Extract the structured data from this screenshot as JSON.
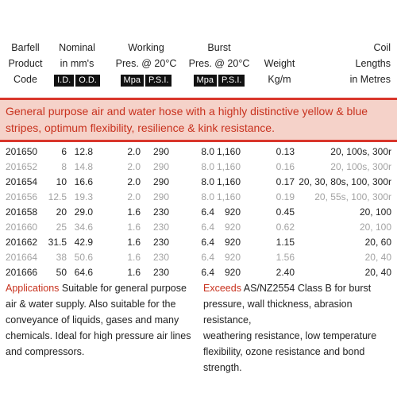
{
  "headers": {
    "code": [
      "Barfell",
      "Product",
      "Code"
    ],
    "nominal": [
      "Nominal",
      "in mm's"
    ],
    "nominal_tags": [
      "I.D.",
      "O.D."
    ],
    "working": [
      "Working",
      "Pres. @ 20°C"
    ],
    "working_tags": [
      "Mpa",
      "P.S.I."
    ],
    "burst": [
      "Burst",
      "Pres. @ 20°C"
    ],
    "burst_tags": [
      "Mpa",
      "P.S.I."
    ],
    "weight": [
      "Weight",
      "Kg/m"
    ],
    "coil": [
      "Coil",
      "Lengths",
      "in Metres"
    ]
  },
  "description": "General purpose air and water hose with a highly distinctive yellow & blue stripes, optimum flexibility, resilience & kink resistance.",
  "rows": [
    {
      "code": "201650",
      "id": "6",
      "od": "12.8",
      "wmpa": "2.0",
      "wpsi": "290",
      "bmpa": "8.0",
      "bpsi": "1,160",
      "kg": "0.13",
      "coil": "20, 100s, 300r"
    },
    {
      "code": "201652",
      "id": "8",
      "od": "14.8",
      "wmpa": "2.0",
      "wpsi": "290",
      "bmpa": "8.0",
      "bpsi": "1,160",
      "kg": "0.16",
      "coil": "20, 100s, 300r"
    },
    {
      "code": "201654",
      "id": "10",
      "od": "16.6",
      "wmpa": "2.0",
      "wpsi": "290",
      "bmpa": "8.0",
      "bpsi": "1,160",
      "kg": "0.17",
      "coil": "20, 30, 80s, 100, 300r"
    },
    {
      "code": "201656",
      "id": "12.5",
      "od": "19.3",
      "wmpa": "2.0",
      "wpsi": "290",
      "bmpa": "8.0",
      "bpsi": "1,160",
      "kg": "0.19",
      "coil": "20, 55s, 100, 300r"
    },
    {
      "code": "201658",
      "id": "20",
      "od": "29.0",
      "wmpa": "1.6",
      "wpsi": "230",
      "bmpa": "6.4",
      "bpsi": "920",
      "kg": "0.45",
      "coil": "20, 100"
    },
    {
      "code": "201660",
      "id": "25",
      "od": "34.6",
      "wmpa": "1.6",
      "wpsi": "230",
      "bmpa": "6.4",
      "bpsi": "920",
      "kg": "0.62",
      "coil": "20, 100"
    },
    {
      "code": "201662",
      "id": "31.5",
      "od": "42.9",
      "wmpa": "1.6",
      "wpsi": "230",
      "bmpa": "6.4",
      "bpsi": "920",
      "kg": "1.15",
      "coil": "20,  60"
    },
    {
      "code": "201664",
      "id": "38",
      "od": "50.6",
      "wmpa": "1.6",
      "wpsi": "230",
      "bmpa": "6.4",
      "bpsi": "920",
      "kg": "1.56",
      "coil": "20,  40"
    },
    {
      "code": "201666",
      "id": "50",
      "od": "64.6",
      "wmpa": "1.6",
      "wpsi": "230",
      "bmpa": "6.4",
      "bpsi": "920",
      "kg": "2.40",
      "coil": "20,  40"
    }
  ],
  "applications": {
    "keyword": "Applications",
    "lines": [
      " Suitable for general purpose",
      "air & water supply. Also suitable for the",
      "conveyance of liquids, gases and many",
      "chemicals. Ideal for high pressure air lines",
      "and compressors."
    ]
  },
  "exceeds": {
    "keyword": "Exceeds",
    "lines": [
      " AS/NZ2554 Class B for burst",
      "pressure, wall thickness, abrasion resistance,",
      "weathering resistance, low temperature",
      "flexibility, ozone resistance and bond",
      "strength."
    ]
  },
  "colors": {
    "accent": "#d9362b",
    "band": "#f5d2c9",
    "text_red": "#c8321e"
  }
}
